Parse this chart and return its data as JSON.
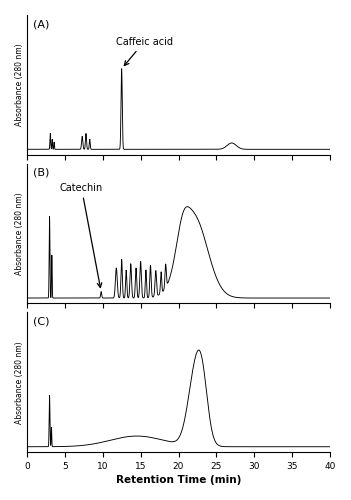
{
  "xlabel": "Retention Time (min)",
  "ylabel": "Absorbance (280 nm)",
  "xlim": [
    0,
    40
  ],
  "panel_labels": [
    "(A)",
    "(B)",
    "(C)"
  ],
  "annotation_A_text": "Caffeic acid",
  "annotation_B_text": "Catechin",
  "line_color": "#000000",
  "background_color": "#ffffff",
  "fig_width": 3.51,
  "fig_height": 5.0,
  "dpi": 100,
  "xticks": [
    0,
    5,
    10,
    15,
    20,
    25,
    30,
    35,
    40
  ]
}
